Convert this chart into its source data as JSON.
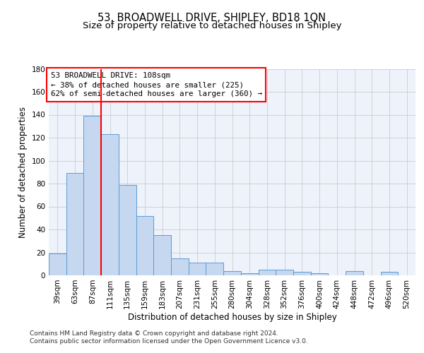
{
  "title_line1": "53, BROADWELL DRIVE, SHIPLEY, BD18 1QN",
  "title_line2": "Size of property relative to detached houses in Shipley",
  "xlabel": "Distribution of detached houses by size in Shipley",
  "ylabel": "Number of detached properties",
  "categories": [
    "39sqm",
    "63sqm",
    "87sqm",
    "111sqm",
    "135sqm",
    "159sqm",
    "183sqm",
    "207sqm",
    "231sqm",
    "255sqm",
    "280sqm",
    "304sqm",
    "328sqm",
    "352sqm",
    "376sqm",
    "400sqm",
    "424sqm",
    "448sqm",
    "472sqm",
    "496sqm",
    "520sqm"
  ],
  "values": [
    19,
    89,
    139,
    123,
    79,
    52,
    35,
    15,
    11,
    11,
    4,
    2,
    5,
    5,
    3,
    2,
    0,
    4,
    0,
    3,
    0
  ],
  "bar_color": "#c5d8f0",
  "bar_edge_color": "#5b9bd5",
  "vline_x_index": 2,
  "vline_color": "red",
  "annotation_text": "53 BROADWELL DRIVE: 108sqm\n← 38% of detached houses are smaller (225)\n62% of semi-detached houses are larger (360) →",
  "annotation_box_color": "white",
  "annotation_box_edge_color": "red",
  "ylim": [
    0,
    180
  ],
  "yticks": [
    0,
    20,
    40,
    60,
    80,
    100,
    120,
    140,
    160,
    180
  ],
  "grid_color": "#cccccc",
  "background_color": "#eef2fb",
  "footer_text": "Contains HM Land Registry data © Crown copyright and database right 2024.\nContains public sector information licensed under the Open Government Licence v3.0.",
  "title_fontsize": 10.5,
  "subtitle_fontsize": 9.5,
  "axis_label_fontsize": 8.5,
  "tick_fontsize": 7.5,
  "annotation_fontsize": 7.8,
  "footer_fontsize": 6.5
}
